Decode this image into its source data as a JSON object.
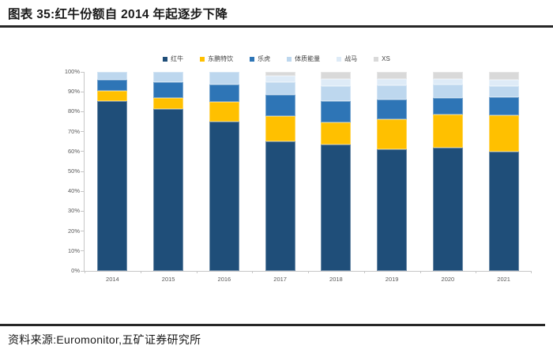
{
  "header": {
    "title": "图表 35:红牛份额自 2014 年起逐步下降"
  },
  "footer": {
    "source": "资料来源:Euromonitor,五矿证券研究所"
  },
  "chart_data": {
    "type": "bar",
    "stacked": true,
    "normalized_to_100": true,
    "title": "",
    "xlabel": "",
    "ylabel": "",
    "legend_position": "top",
    "gridlines": false,
    "ylim": [
      0,
      100
    ],
    "ytick_step": 10,
    "ytick_suffix": "%",
    "categories": [
      "2014",
      "2015",
      "2016",
      "2017",
      "2018",
      "2019",
      "2020",
      "2021"
    ],
    "series": [
      {
        "name": "红牛",
        "color": "#1F4E79",
        "values": [
          85.3,
          81.2,
          75.2,
          65.1,
          63.4,
          61.3,
          62.0,
          59.9
        ]
      },
      {
        "name": "东鹏特饮",
        "color": "#FFC000",
        "values": [
          5.3,
          5.8,
          9.9,
          12.6,
          11.4,
          14.8,
          16.5,
          18.2
        ]
      },
      {
        "name": "乐虎",
        "color": "#2E75B6",
        "values": [
          5.3,
          7.7,
          8.6,
          10.7,
          10.7,
          10.1,
          8.6,
          9.4
        ]
      },
      {
        "name": "体质能量",
        "color": "#BDD7EE",
        "values": [
          4.1,
          5.3,
          6.3,
          6.4,
          7.4,
          7.1,
          6.4,
          5.4
        ]
      },
      {
        "name": "战马",
        "color": "#DEEBF7",
        "values": [
          0,
          0,
          0,
          3.1,
          3.4,
          3.0,
          3.0,
          3.3
        ]
      },
      {
        "name": "XS",
        "color": "#D9D9D9",
        "values": [
          0,
          0,
          0,
          2.1,
          3.7,
          3.7,
          3.5,
          3.8
        ]
      }
    ]
  }
}
